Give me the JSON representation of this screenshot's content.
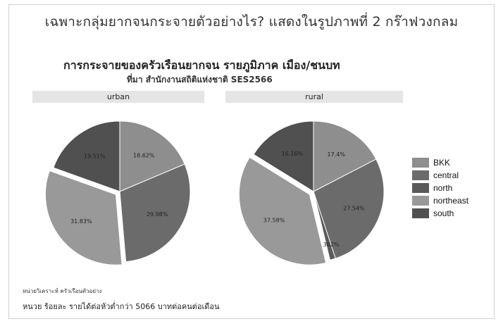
{
  "slide": {
    "title": "เฉพาะกลุ่มยากจนกระจายตัวอย่างไร? แสดงในรูปภาพที่ 2 กร๊าฟวงกลม"
  },
  "footnotes": {
    "line1": "หน่วยวิเคราะห์ ครัวเรือนตัวอย่าง",
    "line2": "หนวย ร้อยละ  รายได้ต่อหัวต่ำกว่า 5066 บาทต่อคนต่อเดือน"
  },
  "chart_data": {
    "type": "pie",
    "title": "การกระจายของครัวเรือนยากจน  รายภูมิภาค เมือง/ชนบท",
    "subtitle": "ที่มา สำนักงานสถิติแห่งชาติ SES2566",
    "categories": [
      "BKK",
      "central",
      "north",
      "northeast",
      "south"
    ],
    "colors": {
      "BKK": "#8e8e8e",
      "central": "#6b6b6b",
      "north": "#5a5a5a",
      "northeast": "#999999",
      "south": "#505050"
    },
    "exploded_category": "northeast",
    "legend_position": "right",
    "facets": [
      {
        "name": "urban",
        "values": [
          18.62,
          29.98,
          0,
          31.83,
          19.51
        ],
        "labels": [
          "18.62%",
          "29.98%",
          "",
          "31.83%",
          "19.51%"
        ]
      },
      {
        "name": "rural",
        "values": [
          17.4,
          27.54,
          1.302,
          37.58,
          16.16
        ],
        "labels": [
          "17.4%",
          "27.54%",
          "1.302%",
          "37.58%",
          "16.16%"
        ]
      }
    ]
  }
}
